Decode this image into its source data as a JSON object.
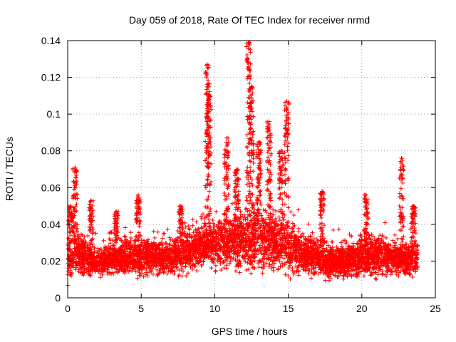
{
  "chart_data": {
    "type": "scatter",
    "title": "Day 059 of 2018, Rate Of TEC Index for receiver nrmd",
    "xlabel": "GPS time / hours",
    "ylabel": "ROTI / TECUs",
    "xlim": [
      0,
      25
    ],
    "ylim": [
      0,
      0.14
    ],
    "xticks": [
      0,
      5,
      10,
      15,
      20,
      25
    ],
    "yticks": [
      0,
      0.02,
      0.04,
      0.06,
      0.08,
      0.1,
      0.12,
      0.14
    ],
    "xtick_labels": [
      "0",
      "5",
      "10",
      "15",
      "20",
      "25"
    ],
    "ytick_labels": [
      "0",
      "0.02",
      "0.04",
      "0.06",
      "0.08",
      "0.1",
      "0.12",
      "0.14"
    ],
    "grid": true,
    "marker": "+",
    "color": "#ff0000",
    "baseline_envelope": [
      {
        "x": 0.0,
        "low": 0.004,
        "high": 0.03
      },
      {
        "x": 0.5,
        "low": 0.006,
        "high": 0.034
      },
      {
        "x": 1.0,
        "low": 0.008,
        "high": 0.03
      },
      {
        "x": 2.0,
        "low": 0.01,
        "high": 0.024
      },
      {
        "x": 3.0,
        "low": 0.01,
        "high": 0.026
      },
      {
        "x": 4.0,
        "low": 0.01,
        "high": 0.028
      },
      {
        "x": 5.0,
        "low": 0.008,
        "high": 0.03
      },
      {
        "x": 6.0,
        "low": 0.01,
        "high": 0.028
      },
      {
        "x": 7.0,
        "low": 0.01,
        "high": 0.028
      },
      {
        "x": 8.0,
        "low": 0.01,
        "high": 0.032
      },
      {
        "x": 9.0,
        "low": 0.012,
        "high": 0.036
      },
      {
        "x": 10.0,
        "low": 0.012,
        "high": 0.038
      },
      {
        "x": 11.0,
        "low": 0.012,
        "high": 0.04
      },
      {
        "x": 12.0,
        "low": 0.01,
        "high": 0.042
      },
      {
        "x": 13.0,
        "low": 0.01,
        "high": 0.045
      },
      {
        "x": 14.0,
        "low": 0.01,
        "high": 0.042
      },
      {
        "x": 15.0,
        "low": 0.008,
        "high": 0.036
      },
      {
        "x": 16.0,
        "low": 0.008,
        "high": 0.03
      },
      {
        "x": 17.0,
        "low": 0.008,
        "high": 0.028
      },
      {
        "x": 18.0,
        "low": 0.008,
        "high": 0.026
      },
      {
        "x": 19.0,
        "low": 0.006,
        "high": 0.026
      },
      {
        "x": 20.0,
        "low": 0.008,
        "high": 0.03
      },
      {
        "x": 21.0,
        "low": 0.008,
        "high": 0.03
      },
      {
        "x": 22.0,
        "low": 0.008,
        "high": 0.028
      },
      {
        "x": 23.0,
        "low": 0.008,
        "high": 0.028
      },
      {
        "x": 23.8,
        "low": 0.008,
        "high": 0.028
      }
    ],
    "spikes": [
      {
        "x": 0.5,
        "peak": 0.071
      },
      {
        "x": 0.2,
        "peak": 0.05
      },
      {
        "x": 1.6,
        "peak": 0.053
      },
      {
        "x": 3.3,
        "peak": 0.047
      },
      {
        "x": 4.8,
        "peak": 0.056
      },
      {
        "x": 7.7,
        "peak": 0.05
      },
      {
        "x": 9.5,
        "peak": 0.127
      },
      {
        "x": 9.6,
        "peak": 0.11
      },
      {
        "x": 10.8,
        "peak": 0.087
      },
      {
        "x": 11.5,
        "peak": 0.07
      },
      {
        "x": 12.3,
        "peak": 0.139
      },
      {
        "x": 12.5,
        "peak": 0.115
      },
      {
        "x": 13.0,
        "peak": 0.085
      },
      {
        "x": 13.7,
        "peak": 0.096
      },
      {
        "x": 14.5,
        "peak": 0.08
      },
      {
        "x": 14.9,
        "peak": 0.107
      },
      {
        "x": 17.3,
        "peak": 0.058
      },
      {
        "x": 20.3,
        "peak": 0.056
      },
      {
        "x": 22.7,
        "peak": 0.076
      },
      {
        "x": 23.5,
        "peak": 0.05
      }
    ],
    "x_end": 23.8
  }
}
